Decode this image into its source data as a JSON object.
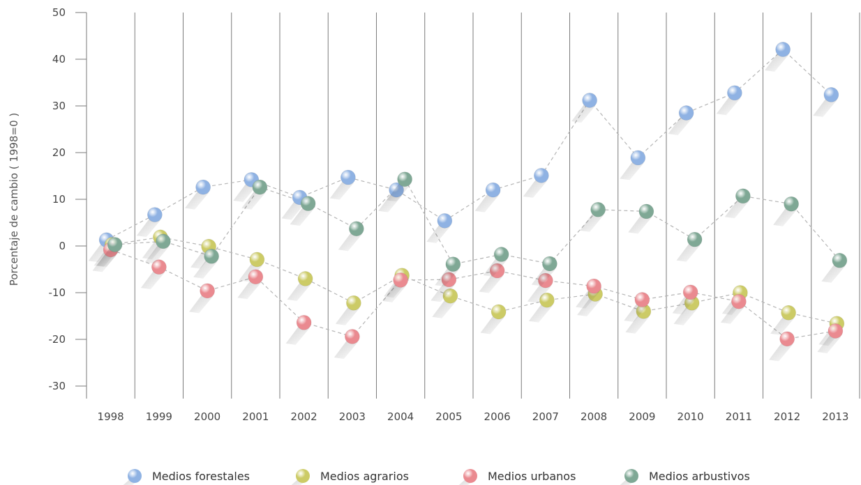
{
  "chart_data": {
    "type": "scatter",
    "ylabel": "Porcentaje de cambio ( 1998=0 )",
    "ylim": [
      -30,
      50
    ],
    "yticks": [
      50,
      40,
      30,
      20,
      10,
      0,
      -10,
      -20,
      -30
    ],
    "categories": [
      "1998",
      "1999",
      "2000",
      "2001",
      "2002",
      "2003",
      "2004",
      "2005",
      "2006",
      "2007",
      "2008",
      "2009",
      "2010",
      "2011",
      "2012",
      "2013"
    ],
    "legend_position": "bottom",
    "series": [
      {
        "name": "Medios forestales",
        "color": "#8fb2e3",
        "values": [
          1.3,
          6.7,
          12.6,
          14.2,
          10.4,
          14.7,
          12.0,
          5.4,
          12.0,
          15.1,
          31.2,
          18.9,
          28.5,
          32.8,
          42.1,
          32.4
        ]
      },
      {
        "name": "Medios agrarios",
        "color": "#cccb66",
        "values": [
          0.3,
          1.9,
          -0.1,
          -2.9,
          -7.0,
          -12.2,
          -6.3,
          -10.7,
          -14.1,
          -11.6,
          -10.3,
          -14.0,
          -12.2,
          -10.0,
          -14.3,
          -16.6
        ]
      },
      {
        "name": "Medios urbanos",
        "color": "#ea8a90",
        "values": [
          -0.8,
          -4.5,
          -9.6,
          -6.6,
          -16.4,
          -19.4,
          -7.3,
          -7.2,
          -5.3,
          -7.4,
          -8.6,
          -11.5,
          -9.9,
          -11.9,
          -19.9,
          -18.2
        ]
      },
      {
        "name": "Medios arbustivos",
        "color": "#7fa895",
        "values": [
          0.3,
          1.0,
          -2.2,
          12.6,
          9.1,
          3.7,
          14.3,
          -3.9,
          -1.8,
          -3.8,
          7.8,
          7.4,
          1.4,
          10.7,
          9.0,
          -3.1
        ]
      }
    ]
  }
}
